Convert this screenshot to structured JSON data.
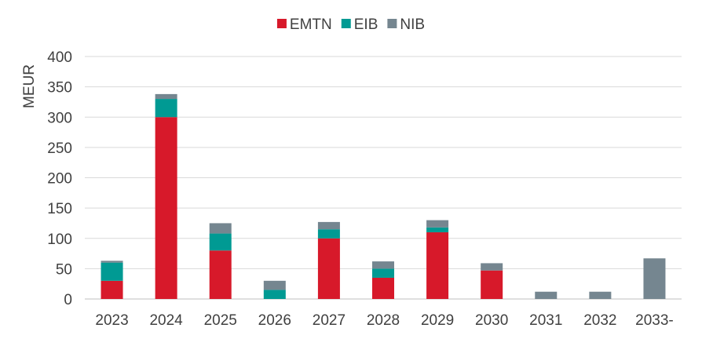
{
  "chart_data": {
    "type": "bar",
    "stacked": true,
    "title": "",
    "xlabel": "",
    "ylabel": "MEUR",
    "ylim": [
      0,
      400
    ],
    "yticks": [
      0,
      50,
      100,
      150,
      200,
      250,
      300,
      350,
      400
    ],
    "grid": true,
    "legend_position": "top-center",
    "categories": [
      "2023",
      "2024",
      "2025",
      "2026",
      "2027",
      "2028",
      "2029",
      "2030",
      "2031",
      "2032",
      "2033-"
    ],
    "series": [
      {
        "name": "EMTN",
        "color": "#d7192a",
        "values": [
          30,
          300,
          80,
          0,
          100,
          35,
          110,
          47,
          0,
          0,
          0
        ]
      },
      {
        "name": "EIB",
        "color": "#009a93",
        "values": [
          30,
          30,
          28,
          15,
          15,
          15,
          8,
          0,
          0,
          0,
          0
        ]
      },
      {
        "name": "NIB",
        "color": "#758690",
        "values": [
          3,
          8,
          17,
          15,
          12,
          12,
          12,
          12,
          12,
          12,
          67
        ]
      }
    ]
  }
}
